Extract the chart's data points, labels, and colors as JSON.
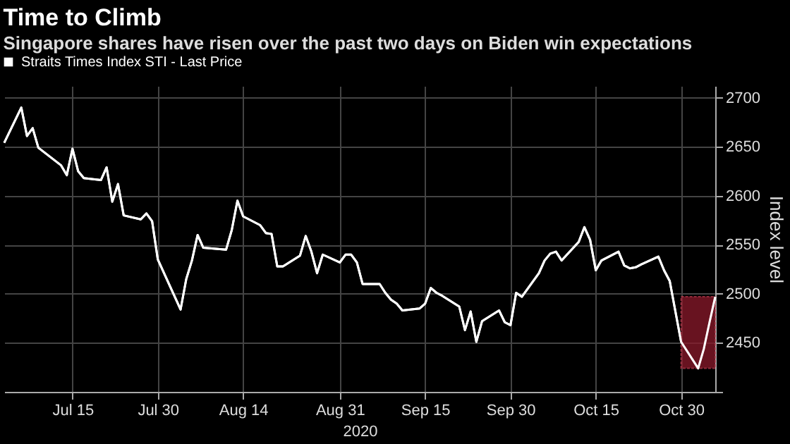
{
  "chart_data": {
    "type": "line",
    "title": "Time to Climb",
    "subtitle": "Singapore shares have risen over the past two days on Biden win expectations",
    "xlabel": "2020",
    "ylabel": "Index level",
    "x": [
      "2020-07-03",
      "2020-07-06",
      "2020-07-07",
      "2020-07-08",
      "2020-07-09",
      "2020-07-13",
      "2020-07-14",
      "2020-07-15",
      "2020-07-16",
      "2020-07-17",
      "2020-07-20",
      "2020-07-21",
      "2020-07-22",
      "2020-07-23",
      "2020-07-24",
      "2020-07-27",
      "2020-07-28",
      "2020-07-29",
      "2020-07-30",
      "2020-08-03",
      "2020-08-04",
      "2020-08-05",
      "2020-08-06",
      "2020-08-07",
      "2020-08-11",
      "2020-08-12",
      "2020-08-13",
      "2020-08-14",
      "2020-08-17",
      "2020-08-18",
      "2020-08-19",
      "2020-08-20",
      "2020-08-21",
      "2020-08-24",
      "2020-08-25",
      "2020-08-26",
      "2020-08-27",
      "2020-08-28",
      "2020-08-31",
      "2020-09-01",
      "2020-09-02",
      "2020-09-03",
      "2020-09-04",
      "2020-09-07",
      "2020-09-08",
      "2020-09-09",
      "2020-09-10",
      "2020-09-11",
      "2020-09-14",
      "2020-09-15",
      "2020-09-16",
      "2020-09-17",
      "2020-09-18",
      "2020-09-21",
      "2020-09-22",
      "2020-09-23",
      "2020-09-24",
      "2020-09-25",
      "2020-09-28",
      "2020-09-29",
      "2020-09-30",
      "2020-10-01",
      "2020-10-02",
      "2020-10-05",
      "2020-10-06",
      "2020-10-07",
      "2020-10-08",
      "2020-10-09",
      "2020-10-12",
      "2020-10-13",
      "2020-10-14",
      "2020-10-15",
      "2020-10-16",
      "2020-10-19",
      "2020-10-20",
      "2020-10-21",
      "2020-10-22",
      "2020-10-23",
      "2020-10-26",
      "2020-10-27",
      "2020-10-28",
      "2020-10-29",
      "2020-10-30",
      "2020-11-02",
      "2020-11-03",
      "2020-11-04",
      "2020-11-05"
    ],
    "series": [
      {
        "name": "Straits Times Index STI - Last Price",
        "color": "#ffffff",
        "values": [
          2654,
          2690,
          2661,
          2669,
          2649,
          2631,
          2621,
          2648,
          2625,
          2618,
          2616,
          2629,
          2594,
          2612,
          2580,
          2576,
          2582,
          2574,
          2535,
          2484,
          2515,
          2534,
          2560,
          2547,
          2545,
          2565,
          2595,
          2579,
          2570,
          2562,
          2561,
          2528,
          2528,
          2539,
          2559,
          2543,
          2521,
          2540,
          2532,
          2540,
          2540,
          2532,
          2510,
          2510,
          2501,
          2494,
          2490,
          2483,
          2485,
          2490,
          2506,
          2501,
          2498,
          2487,
          2463,
          2482,
          2451,
          2472,
          2483,
          2471,
          2468,
          2501,
          2497,
          2521,
          2534,
          2541,
          2543,
          2534,
          2553,
          2568,
          2555,
          2524,
          2534,
          2543,
          2529,
          2526,
          2527,
          2530,
          2538,
          2524,
          2513,
          2482,
          2451,
          2424,
          2444,
          2471,
          2497
        ]
      }
    ],
    "xlim": [
      "2020-07-03",
      "2020-11-05"
    ],
    "xticks": [
      {
        "value": "2020-07-15",
        "label": "Jul 15"
      },
      {
        "value": "2020-07-30",
        "label": "Jul 30"
      },
      {
        "value": "2020-08-14",
        "label": "Aug 14"
      },
      {
        "value": "2020-08-31",
        "label": "Aug 31"
      },
      {
        "value": "2020-09-15",
        "label": "Sep 15"
      },
      {
        "value": "2020-09-30",
        "label": "Sep 30"
      },
      {
        "value": "2020-10-15",
        "label": "Oct 15"
      },
      {
        "value": "2020-10-30",
        "label": "Oct 30"
      }
    ],
    "ylim": [
      2400,
      2712
    ],
    "yticks": [
      {
        "value": 2400,
        "label": null
      },
      2450,
      2500,
      2550,
      2600,
      2650,
      2700
    ],
    "bands": [
      {
        "axis": "x",
        "from": "2020-10-30",
        "to": "2020-11-05",
        "color": "#8b1a2b"
      }
    ],
    "grid": true,
    "legend": "top left",
    "marker": "none",
    "line_style": "solid"
  }
}
